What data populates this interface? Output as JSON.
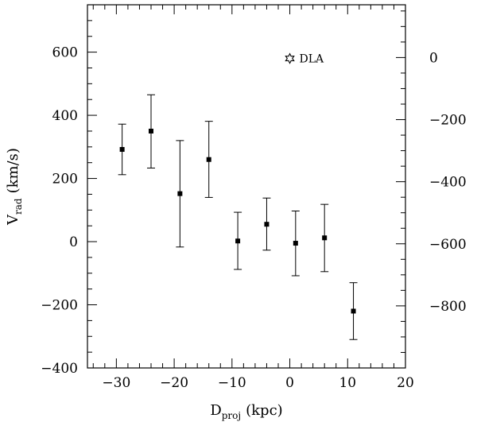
{
  "chart_data": {
    "type": "scatter",
    "title": "",
    "xlabel": {
      "main": "D",
      "sub": "proj",
      "unit": "(kpc)"
    },
    "ylabel": {
      "main": "V",
      "sub": "rad",
      "unit": "(km/s)"
    },
    "xlim": [
      -35,
      20
    ],
    "ylim": [
      -400,
      750
    ],
    "y2lim": [
      -1000,
      170
    ],
    "x_ticks": [
      -30,
      -20,
      -10,
      0,
      10,
      20
    ],
    "x_tick_labels": [
      "−30",
      "−20",
      "−10",
      "0",
      "10",
      "20"
    ],
    "y_ticks": [
      -400,
      -200,
      0,
      200,
      400,
      600
    ],
    "y_tick_labels": [
      "−400",
      "−200",
      "0",
      "200",
      "400",
      "600"
    ],
    "y2_ticks": [
      0,
      -200,
      -400,
      -600,
      -800
    ],
    "y2_tick_labels": [
      "0",
      "−200",
      "−400",
      "−600",
      "−800"
    ],
    "grid": false,
    "series": [
      {
        "marker": "square",
        "points": [
          {
            "x": -29,
            "y": 292,
            "ylo": 212,
            "yhi": 372
          },
          {
            "x": -24,
            "y": 350,
            "ylo": 233,
            "yhi": 465
          },
          {
            "x": -19,
            "y": 152,
            "ylo": -17,
            "yhi": 320
          },
          {
            "x": -14,
            "y": 260,
            "ylo": 140,
            "yhi": 381
          },
          {
            "x": -9,
            "y": 2,
            "ylo": -88,
            "yhi": 93
          },
          {
            "x": -4,
            "y": 55,
            "ylo": -27,
            "yhi": 138
          },
          {
            "x": 1,
            "y": -5,
            "ylo": -108,
            "yhi": 97
          },
          {
            "x": 6,
            "y": 12,
            "ylo": -95,
            "yhi": 118
          },
          {
            "x": 11,
            "y": -220,
            "ylo": -310,
            "yhi": -130
          }
        ]
      }
    ],
    "annotation": {
      "label": "DLA",
      "marker": "star",
      "x": 0,
      "y": 580
    }
  }
}
